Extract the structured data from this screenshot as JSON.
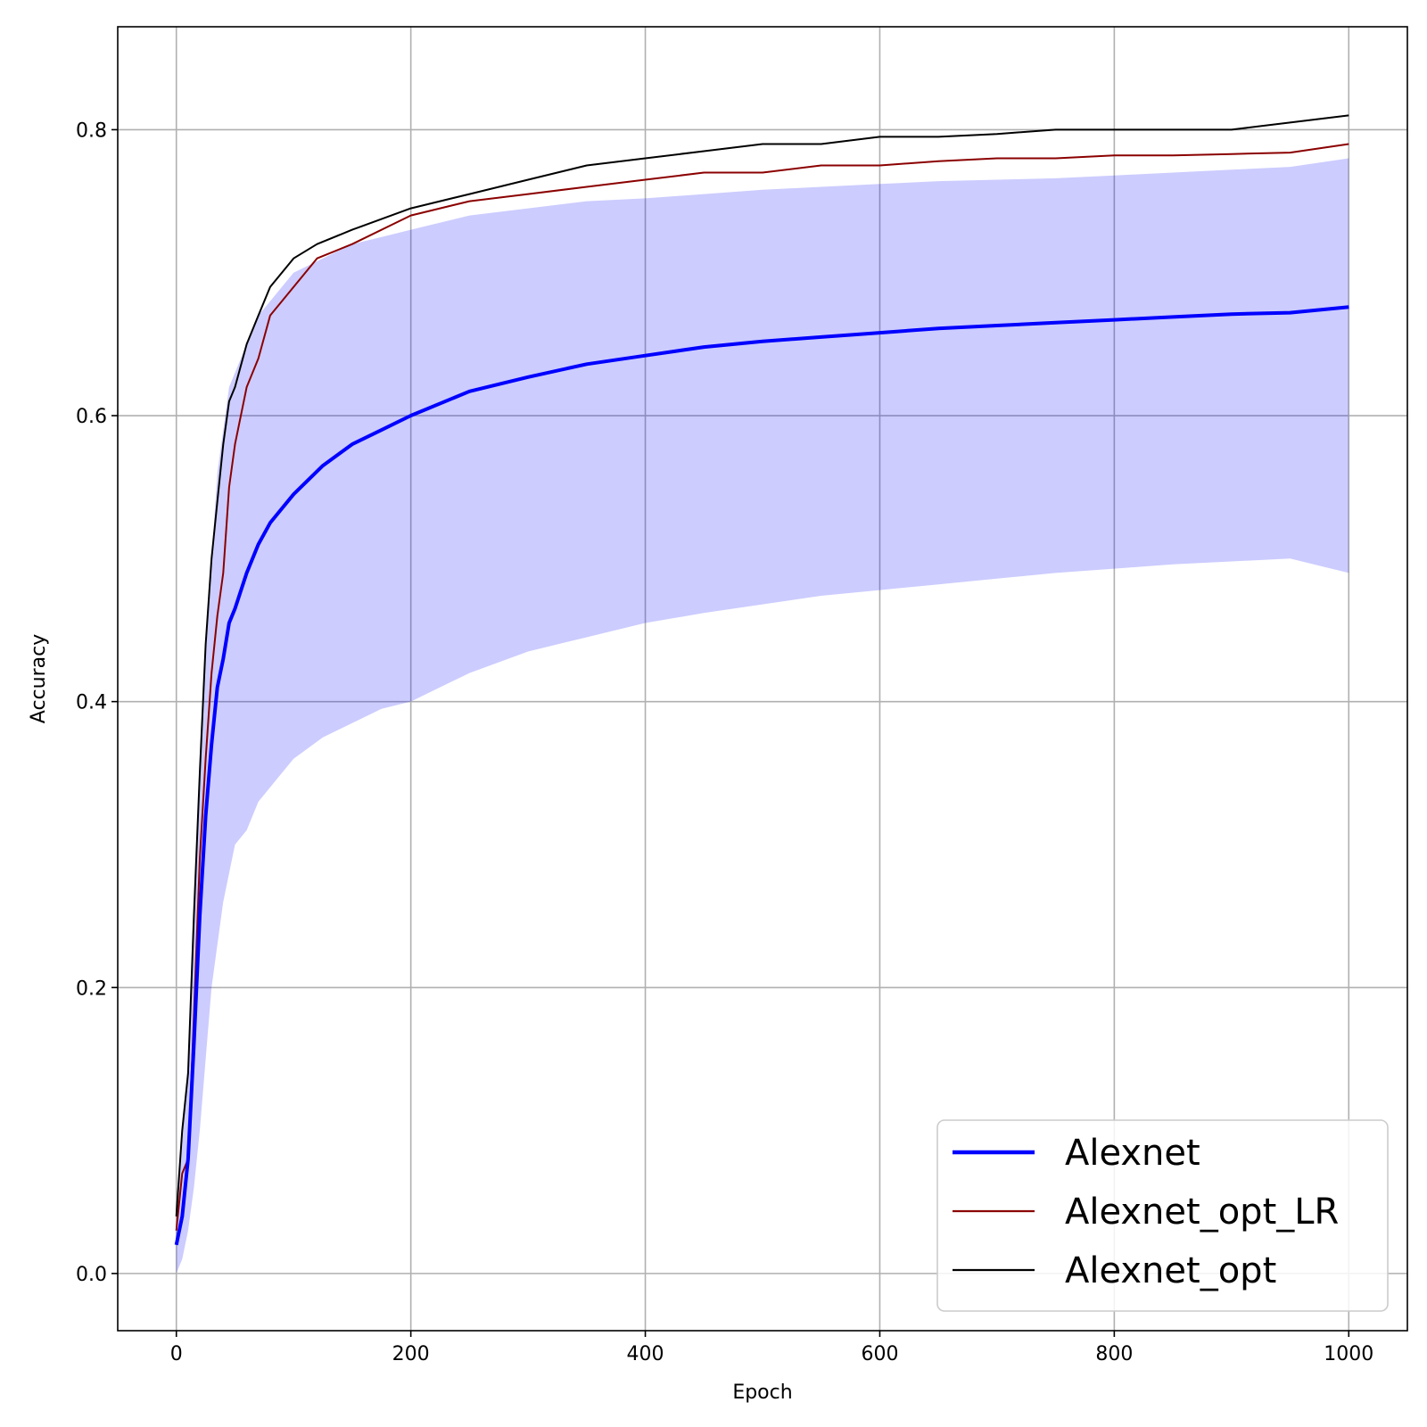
{
  "chart_data": {
    "type": "line",
    "title": "",
    "xlabel": "Epoch",
    "ylabel": "Accuracy",
    "xlim": [
      -50,
      1050
    ],
    "ylim": [
      -0.04,
      0.872
    ],
    "xticks": [
      0,
      200,
      400,
      600,
      800,
      1000
    ],
    "yticks": [
      0.0,
      0.2,
      0.4,
      0.6,
      0.8
    ],
    "xtick_labels": [
      "0",
      "200",
      "400",
      "600",
      "800",
      "1000"
    ],
    "ytick_labels": [
      "0.0",
      "0.2",
      "0.4",
      "0.6",
      "0.8"
    ],
    "grid": true,
    "legend_position": "lower-right",
    "series": [
      {
        "name": "Alexnet",
        "color": "#0000ff",
        "style": "thick",
        "x": [
          0,
          5,
          10,
          15,
          20,
          25,
          30,
          35,
          40,
          45,
          50,
          60,
          70,
          80,
          90,
          100,
          125,
          150,
          175,
          200,
          250,
          300,
          350,
          400,
          450,
          500,
          550,
          600,
          650,
          700,
          750,
          800,
          850,
          900,
          950,
          1000
        ],
        "y": [
          0.02,
          0.04,
          0.08,
          0.16,
          0.25,
          0.32,
          0.37,
          0.41,
          0.43,
          0.455,
          0.465,
          0.49,
          0.51,
          0.525,
          0.535,
          0.545,
          0.565,
          0.58,
          0.59,
          0.6,
          0.617,
          0.627,
          0.636,
          0.642,
          0.648,
          0.652,
          0.655,
          0.658,
          0.661,
          0.663,
          0.665,
          0.667,
          0.669,
          0.671,
          0.672,
          0.676
        ]
      },
      {
        "name": "Alexnet_opt_LR",
        "color": "#8b0000",
        "style": "thin",
        "x": [
          0,
          5,
          10,
          15,
          20,
          25,
          30,
          35,
          40,
          45,
          50,
          60,
          70,
          80,
          100,
          120,
          150,
          200,
          250,
          300,
          350,
          400,
          450,
          500,
          550,
          600,
          650,
          700,
          750,
          800,
          850,
          900,
          950,
          1000
        ],
        "y": [
          0.03,
          0.07,
          0.08,
          0.18,
          0.29,
          0.36,
          0.42,
          0.46,
          0.49,
          0.55,
          0.58,
          0.62,
          0.64,
          0.67,
          0.69,
          0.71,
          0.72,
          0.74,
          0.75,
          0.755,
          0.76,
          0.765,
          0.77,
          0.77,
          0.775,
          0.775,
          0.778,
          0.78,
          0.78,
          0.782,
          0.782,
          0.783,
          0.784,
          0.79
        ]
      },
      {
        "name": "Alexnet_opt",
        "color": "#000000",
        "style": "thin",
        "x": [
          0,
          5,
          10,
          15,
          20,
          25,
          30,
          35,
          40,
          45,
          50,
          60,
          70,
          80,
          100,
          120,
          150,
          200,
          250,
          300,
          350,
          400,
          450,
          500,
          550,
          600,
          650,
          700,
          750,
          800,
          850,
          900,
          950,
          1000
        ],
        "y": [
          0.04,
          0.1,
          0.14,
          0.25,
          0.35,
          0.44,
          0.5,
          0.54,
          0.58,
          0.61,
          0.62,
          0.65,
          0.67,
          0.69,
          0.71,
          0.72,
          0.73,
          0.745,
          0.755,
          0.765,
          0.775,
          0.78,
          0.785,
          0.79,
          0.79,
          0.795,
          0.795,
          0.797,
          0.8,
          0.8,
          0.8,
          0.8,
          0.805,
          0.81
        ]
      }
    ],
    "band": {
      "series": "Alexnet",
      "color": "#0000ff",
      "opacity": 0.2,
      "x": [
        0,
        5,
        10,
        15,
        20,
        25,
        30,
        35,
        40,
        45,
        50,
        60,
        70,
        80,
        90,
        100,
        125,
        150,
        175,
        200,
        250,
        300,
        350,
        400,
        450,
        500,
        550,
        600,
        650,
        700,
        750,
        800,
        850,
        900,
        950,
        1000
      ],
      "upper": [
        0.04,
        0.09,
        0.15,
        0.24,
        0.35,
        0.43,
        0.5,
        0.56,
        0.59,
        0.62,
        0.63,
        0.65,
        0.67,
        0.68,
        0.69,
        0.7,
        0.71,
        0.72,
        0.725,
        0.73,
        0.74,
        0.745,
        0.75,
        0.752,
        0.755,
        0.758,
        0.76,
        0.762,
        0.764,
        0.765,
        0.766,
        0.768,
        0.77,
        0.772,
        0.774,
        0.78
      ],
      "lower": [
        0.0,
        0.01,
        0.03,
        0.06,
        0.1,
        0.15,
        0.2,
        0.23,
        0.26,
        0.28,
        0.3,
        0.31,
        0.33,
        0.34,
        0.35,
        0.36,
        0.375,
        0.385,
        0.395,
        0.4,
        0.42,
        0.435,
        0.445,
        0.455,
        0.462,
        0.468,
        0.474,
        0.478,
        0.482,
        0.486,
        0.49,
        0.493,
        0.496,
        0.498,
        0.5,
        0.49
      ]
    }
  }
}
